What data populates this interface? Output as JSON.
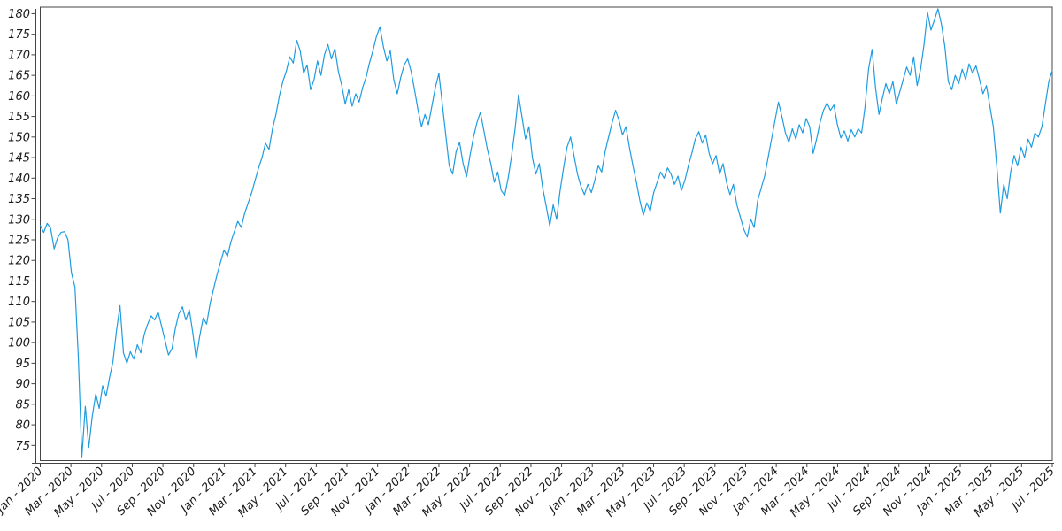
{
  "page": {
    "background_color": "#ffffff",
    "title": ""
  },
  "chart_data": {
    "type": "line",
    "title": "",
    "xlabel": "",
    "ylabel": "",
    "grid": false,
    "legend_position": "none",
    "line_color": "#1f9ce0",
    "axis_color": "#454545",
    "tick_text_color": "#1a1a1a",
    "ylim": [
      71.3,
      181.6
    ],
    "y_tick_values": [
      75,
      80,
      85,
      90,
      95,
      100,
      105,
      110,
      115,
      120,
      125,
      130,
      135,
      140,
      145,
      150,
      155,
      160,
      165,
      170,
      175,
      180
    ],
    "x_tick_labels": [
      "Jan - 2020",
      "Mar - 2020",
      "May - 2020",
      "Jul - 2020",
      "Sep - 2020",
      "Nov - 2020",
      "Jan - 2021",
      "Mar - 2021",
      "May - 2021",
      "Jul - 2021",
      "Sep - 2021",
      "Nov - 2021",
      "Jan - 2022",
      "Mar - 2022",
      "May - 2022",
      "Jul - 2022",
      "Sep - 2022",
      "Nov - 2022",
      "Jan - 2023",
      "Mar - 2023",
      "May - 2023",
      "Jul - 2023",
      "Sep - 2023",
      "Nov - 2023",
      "Jan - 2024",
      "Mar - 2024",
      "May - 2024",
      "Jul - 2024",
      "Sep - 2024",
      "Nov - 2024",
      "Jan - 2025",
      "Mar - 2025",
      "May - 2025",
      "Jul - 2025"
    ],
    "x_description": "weekly samples, Jan 2020 through early Aug 2025",
    "series": [
      {
        "name": "value",
        "values": [
          128.5,
          126.8,
          129.0,
          127.8,
          122.8,
          125.5,
          126.8,
          127.0,
          125.0,
          117.0,
          113.5,
          96.0,
          72.2,
          84.5,
          74.5,
          82.0,
          87.5,
          84.0,
          89.5,
          87.0,
          91.5,
          95.5,
          103.0,
          109.0,
          97.5,
          95.0,
          97.8,
          96.0,
          99.5,
          97.5,
          102.0,
          104.5,
          106.5,
          105.5,
          107.5,
          104.0,
          100.5,
          97.0,
          98.5,
          103.5,
          107.0,
          108.7,
          105.5,
          108.0,
          102.5,
          96.0,
          101.5,
          106.0,
          104.5,
          109.5,
          113.0,
          116.5,
          119.5,
          122.5,
          121.0,
          124.5,
          127.0,
          129.5,
          128.0,
          131.5,
          134.0,
          136.5,
          139.5,
          142.5,
          145.0,
          148.5,
          147.0,
          152.0,
          155.5,
          160.0,
          163.5,
          166.0,
          169.5,
          168.0,
          173.5,
          171.0,
          165.5,
          167.5,
          161.5,
          164.0,
          168.5,
          165.0,
          170.0,
          172.5,
          169.0,
          171.5,
          166.0,
          162.5,
          158.0,
          161.5,
          157.5,
          160.5,
          158.5,
          162.0,
          164.5,
          168.0,
          171.0,
          174.5,
          176.8,
          172.0,
          168.5,
          171.0,
          164.0,
          160.5,
          164.5,
          167.5,
          169.0,
          166.0,
          161.5,
          156.5,
          152.5,
          155.5,
          153.0,
          157.5,
          162.0,
          165.5,
          158.0,
          150.5,
          143.0,
          141.0,
          146.5,
          148.7,
          143.5,
          140.3,
          145.5,
          150.0,
          153.5,
          156.0,
          151.5,
          147.0,
          143.5,
          139.0,
          141.5,
          137.0,
          135.8,
          140.0,
          145.5,
          152.0,
          160.3,
          155.0,
          149.5,
          152.5,
          145.0,
          141.0,
          143.5,
          137.5,
          133.0,
          128.4,
          133.5,
          130.0,
          137.0,
          142.5,
          147.5,
          150.0,
          145.5,
          141.0,
          138.0,
          136.0,
          138.5,
          136.5,
          139.5,
          143.0,
          141.5,
          146.5,
          150.0,
          153.5,
          156.5,
          154.0,
          150.5,
          152.5,
          147.5,
          143.0,
          139.0,
          134.5,
          131.0,
          134.0,
          132.0,
          136.5,
          139.0,
          141.5,
          140.0,
          142.5,
          141.0,
          138.5,
          140.5,
          137.0,
          139.5,
          143.0,
          146.0,
          149.5,
          151.3,
          148.5,
          150.5,
          146.0,
          143.5,
          145.5,
          141.0,
          143.5,
          139.0,
          136.0,
          138.5,
          133.5,
          130.5,
          127.5,
          125.7,
          130.0,
          128.0,
          134.5,
          137.5,
          140.5,
          145.0,
          149.5,
          154.0,
          158.5,
          155.0,
          151.0,
          148.7,
          152.0,
          149.5,
          153.0,
          151.0,
          154.5,
          152.5,
          146.0,
          149.5,
          153.5,
          156.5,
          158.3,
          156.5,
          157.8,
          153.0,
          149.8,
          151.5,
          149.0,
          151.8,
          150.0,
          152.0,
          151.0,
          157.5,
          166.5,
          171.3,
          162.0,
          155.5,
          159.5,
          163.0,
          160.5,
          163.5,
          158.0,
          161.0,
          164.0,
          167.0,
          165.0,
          169.5,
          162.5,
          166.5,
          172.5,
          180.3,
          176.0,
          178.5,
          181.2,
          177.5,
          172.0,
          163.5,
          161.5,
          165.0,
          163.0,
          166.5,
          164.0,
          167.8,
          165.5,
          167.3,
          164.0,
          160.5,
          162.5,
          157.5,
          152.5,
          143.0,
          131.5,
          138.5,
          135.0,
          141.5,
          145.5,
          143.0,
          147.5,
          145.0,
          149.5,
          147.5,
          151.0,
          150.0,
          152.5,
          158.0,
          163.5,
          166.2
        ]
      }
    ]
  }
}
